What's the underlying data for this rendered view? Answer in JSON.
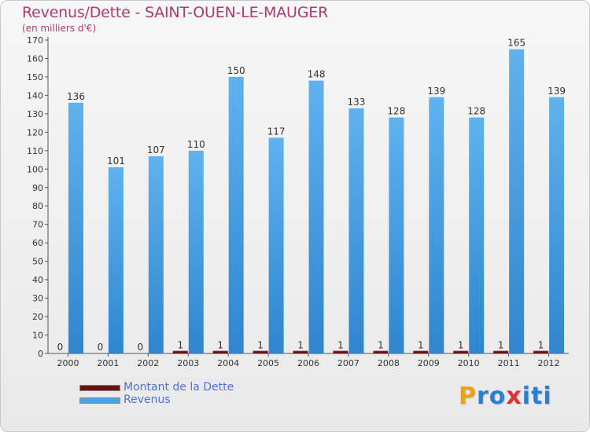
{
  "chart_data": {
    "type": "bar",
    "title": "Revenus/Dette - SAINT-OUEN-LE-MAUGER",
    "subtitle": "(en milliers d'€)",
    "categories": [
      "2000",
      "2001",
      "2002",
      "2003",
      "2004",
      "2005",
      "2006",
      "2007",
      "2008",
      "2009",
      "2010",
      "2011",
      "2012"
    ],
    "series": [
      {
        "name": "Montant de la Dette",
        "color": "#6b0f0f",
        "values": [
          0,
          0,
          0,
          1,
          1,
          1,
          1,
          1,
          1,
          1,
          1,
          1,
          1
        ]
      },
      {
        "name": "Revenus",
        "color": "#4aa3e6",
        "values": [
          136,
          101,
          107,
          110,
          150,
          117,
          148,
          133,
          128,
          139,
          128,
          165,
          139
        ]
      }
    ],
    "ylim": [
      0,
      170
    ],
    "ytick_step": 10,
    "grid": false,
    "legend_position": "bottom-left"
  },
  "logo": {
    "text": "Proxiti",
    "letters": [
      "P",
      "r",
      "o",
      "x",
      "i",
      "t",
      "i"
    ],
    "colors": [
      "#e8a21c",
      "#2b7fd1",
      "#2b7fd1",
      "#d9343a",
      "#2b7fd1",
      "#2b7fd1",
      "#2b7fd1"
    ]
  }
}
